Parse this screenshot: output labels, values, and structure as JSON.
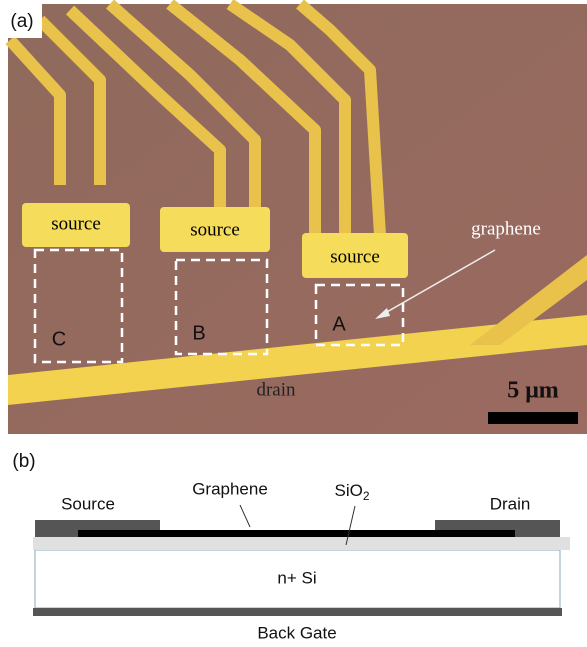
{
  "panel_a": {
    "label": "(a)",
    "sources": [
      "source",
      "source",
      "source"
    ],
    "graphene": "graphene",
    "devices": [
      "C",
      "B",
      "A"
    ],
    "drain": "drain",
    "scale_bar": "5 μm"
  },
  "panel_b": {
    "label": "(b)",
    "source": "Source",
    "graphene": "Graphene",
    "oxide": {
      "text": "SiO",
      "sub": "2"
    },
    "drain": "Drain",
    "substrate": "n+ Si",
    "gate": "Back Gate"
  }
}
